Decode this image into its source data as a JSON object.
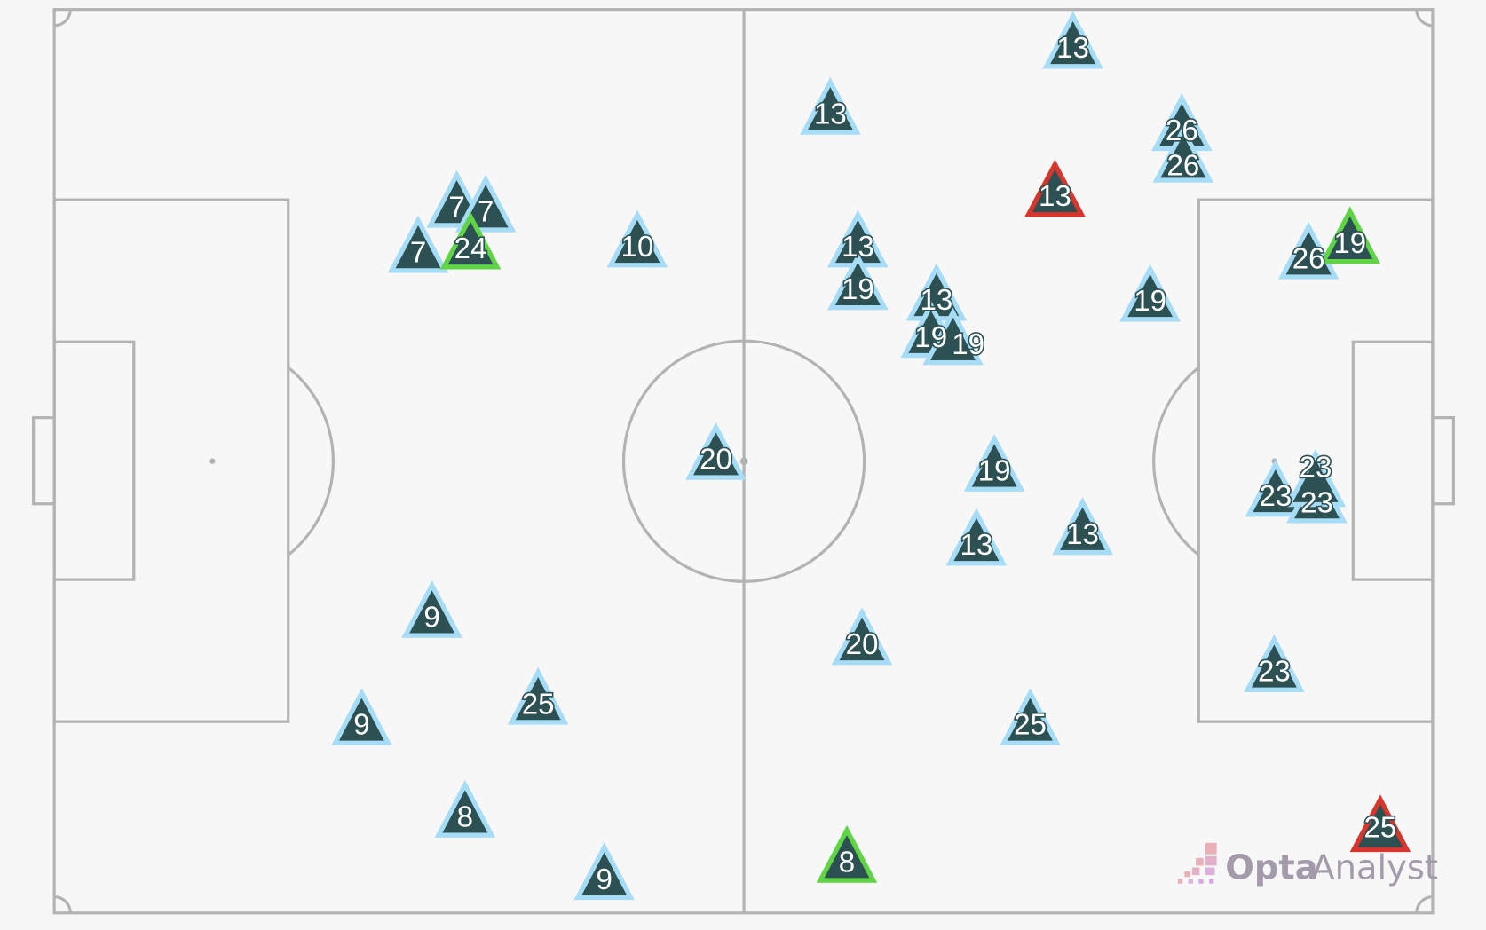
{
  "colors": {
    "background": "#f7f7f7",
    "pitch_lines": "#b3b3b3",
    "marker_fill": "#2d5052",
    "outline_default": "#a6dcf5",
    "outline_green": "#5fd444",
    "outline_red": "#d9352c"
  },
  "brand": {
    "name_bold": "Opta",
    "name_light": "Analyst"
  },
  "markers": [
    {
      "n": "13",
      "x": 73.9,
      "y": 4.2,
      "outline": "default"
    },
    {
      "n": "13",
      "x": 56.3,
      "y": 11.5,
      "outline": "default"
    },
    {
      "n": "26",
      "x": 81.8,
      "y": 13.3,
      "outline": "default"
    },
    {
      "n": "26",
      "x": 81.9,
      "y": 16.8,
      "outline": "default"
    },
    {
      "n": "13",
      "x": 72.6,
      "y": 20.6,
      "outline": "red"
    },
    {
      "n": "7",
      "x": 29.2,
      "y": 21.8,
      "outline": "default"
    },
    {
      "n": "7",
      "x": 31.3,
      "y": 22.3,
      "outline": "default"
    },
    {
      "n": "7",
      "x": 26.4,
      "y": 26.8,
      "outline": "default"
    },
    {
      "n": "24",
      "x": 30.2,
      "y": 26.4,
      "outline": "green"
    },
    {
      "n": "10",
      "x": 42.3,
      "y": 26.2,
      "outline": "default"
    },
    {
      "n": "13",
      "x": 58.3,
      "y": 26.2,
      "outline": "default"
    },
    {
      "n": "19",
      "x": 58.3,
      "y": 30.9,
      "outline": "default"
    },
    {
      "n": "13",
      "x": 64.0,
      "y": 32.1,
      "outline": "default"
    },
    {
      "n": "19",
      "x": 63.6,
      "y": 36.2,
      "outline": "default"
    },
    {
      "n": "19",
      "x": 65.2,
      "y": 37.0,
      "outline": "default"
    },
    {
      "n": "19",
      "x": 79.5,
      "y": 32.2,
      "outline": "default"
    },
    {
      "n": "26",
      "x": 91.0,
      "y": 27.5,
      "outline": "default"
    },
    {
      "n": "19",
      "x": 94.0,
      "y": 25.8,
      "outline": "green"
    },
    {
      "n": "20",
      "x": 48.0,
      "y": 49.7,
      "outline": "default"
    },
    {
      "n": "19",
      "x": 68.2,
      "y": 51.0,
      "outline": "default"
    },
    {
      "n": "13",
      "x": 66.9,
      "y": 59.2,
      "outline": "default"
    },
    {
      "n": "13",
      "x": 74.6,
      "y": 58.0,
      "outline": "default"
    },
    {
      "n": "23",
      "x": 88.6,
      "y": 53.8,
      "outline": "default"
    },
    {
      "n": "23",
      "x": 91.6,
      "y": 54.5,
      "outline": "default"
    },
    {
      "n": "23",
      "x": 91.5,
      "y": 52.7,
      "outline": "default"
    },
    {
      "n": "9",
      "x": 27.4,
      "y": 67.2,
      "outline": "default"
    },
    {
      "n": "9",
      "x": 22.3,
      "y": 79.1,
      "outline": "default"
    },
    {
      "n": "25",
      "x": 35.1,
      "y": 76.8,
      "outline": "default"
    },
    {
      "n": "8",
      "x": 29.8,
      "y": 89.3,
      "outline": "default"
    },
    {
      "n": "9",
      "x": 39.9,
      "y": 96.2,
      "outline": "default"
    },
    {
      "n": "20",
      "x": 58.6,
      "y": 70.2,
      "outline": "default"
    },
    {
      "n": "25",
      "x": 70.8,
      "y": 79.1,
      "outline": "default"
    },
    {
      "n": "23",
      "x": 88.5,
      "y": 73.2,
      "outline": "default"
    },
    {
      "n": "8",
      "x": 57.5,
      "y": 94.3,
      "outline": "green"
    },
    {
      "n": "25",
      "x": 96.2,
      "y": 90.9,
      "outline": "red"
    }
  ]
}
